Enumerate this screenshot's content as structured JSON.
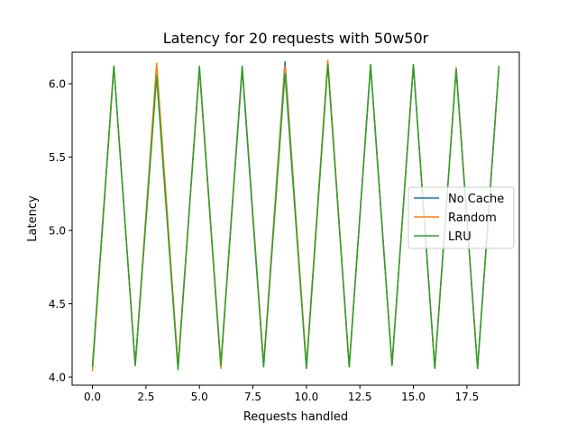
{
  "chart_data": {
    "type": "line",
    "title": "Latency for 20 requests with 50w50r",
    "xlabel": "Requests handled",
    "ylabel": "Latency",
    "xlim": [
      -0.95,
      19.95
    ],
    "ylim": [
      3.945,
      6.215
    ],
    "xticks": [
      0,
      2.5,
      5,
      7.5,
      10,
      12.5,
      15,
      17.5
    ],
    "xtick_labels": [
      "0.0",
      "2.5",
      "5.0",
      "7.5",
      "10.0",
      "12.5",
      "15.0",
      "17.5"
    ],
    "yticks": [
      4.0,
      4.5,
      5.0,
      5.5,
      6.0
    ],
    "ytick_labels": [
      "4.0",
      "4.5",
      "5.0",
      "5.5",
      "6.0"
    ],
    "grid": false,
    "legend_position": "center-right",
    "x": [
      0,
      1,
      2,
      3,
      4,
      5,
      6,
      7,
      8,
      9,
      10,
      11,
      12,
      13,
      14,
      15,
      16,
      17,
      18,
      19
    ],
    "series": [
      {
        "name": "No Cache",
        "color": "#1f77b4",
        "values": [
          4.07,
          6.12,
          4.08,
          6.07,
          4.07,
          6.1,
          4.08,
          6.1,
          4.07,
          6.15,
          4.06,
          6.15,
          4.07,
          6.12,
          4.08,
          6.13,
          4.06,
          6.1,
          4.06,
          6.12
        ]
      },
      {
        "name": "Random",
        "color": "#ff7f0e",
        "values": [
          4.04,
          6.12,
          4.08,
          6.14,
          4.08,
          6.1,
          4.06,
          6.12,
          4.09,
          6.12,
          4.08,
          6.16,
          4.07,
          6.13,
          4.08,
          6.13,
          4.06,
          6.11,
          4.06,
          6.12
        ]
      },
      {
        "name": "LRU",
        "color": "#2ca02c",
        "values": [
          4.07,
          6.12,
          4.08,
          6.05,
          4.05,
          6.12,
          4.08,
          6.12,
          4.07,
          6.07,
          4.06,
          6.13,
          4.07,
          6.13,
          4.08,
          6.13,
          4.06,
          6.1,
          4.06,
          6.12
        ]
      }
    ]
  }
}
